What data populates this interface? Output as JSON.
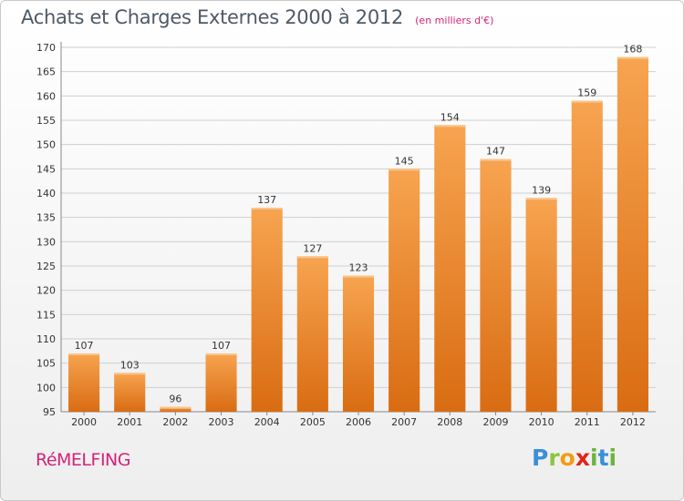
{
  "title": "Achats et Charges Externes 2000 à 2012",
  "subtitle": "(en milliers d'€)",
  "commune": "RéMELFING",
  "logo_text": "Proxiti",
  "colors": {
    "bar_top": "#f7a450",
    "bar_bottom": "#d96c12",
    "grid": "#cfcfcf",
    "title": "#4d5a66",
    "accent": "#d2237a"
  },
  "chart_data": {
    "type": "bar",
    "categories": [
      "2000",
      "2001",
      "2002",
      "2003",
      "2004",
      "2005",
      "2006",
      "2007",
      "2008",
      "2009",
      "2010",
      "2011",
      "2012"
    ],
    "values": [
      107,
      103,
      96,
      107,
      137,
      127,
      123,
      145,
      154,
      147,
      139,
      159,
      168
    ],
    "ylim": [
      95,
      170
    ],
    "yticks": [
      95,
      100,
      105,
      110,
      115,
      120,
      125,
      130,
      135,
      140,
      145,
      150,
      155,
      160,
      165,
      170
    ],
    "grid": true,
    "data_labels": true,
    "title": "Achats et Charges Externes 2000 à 2012",
    "xlabel": "",
    "ylabel": ""
  }
}
